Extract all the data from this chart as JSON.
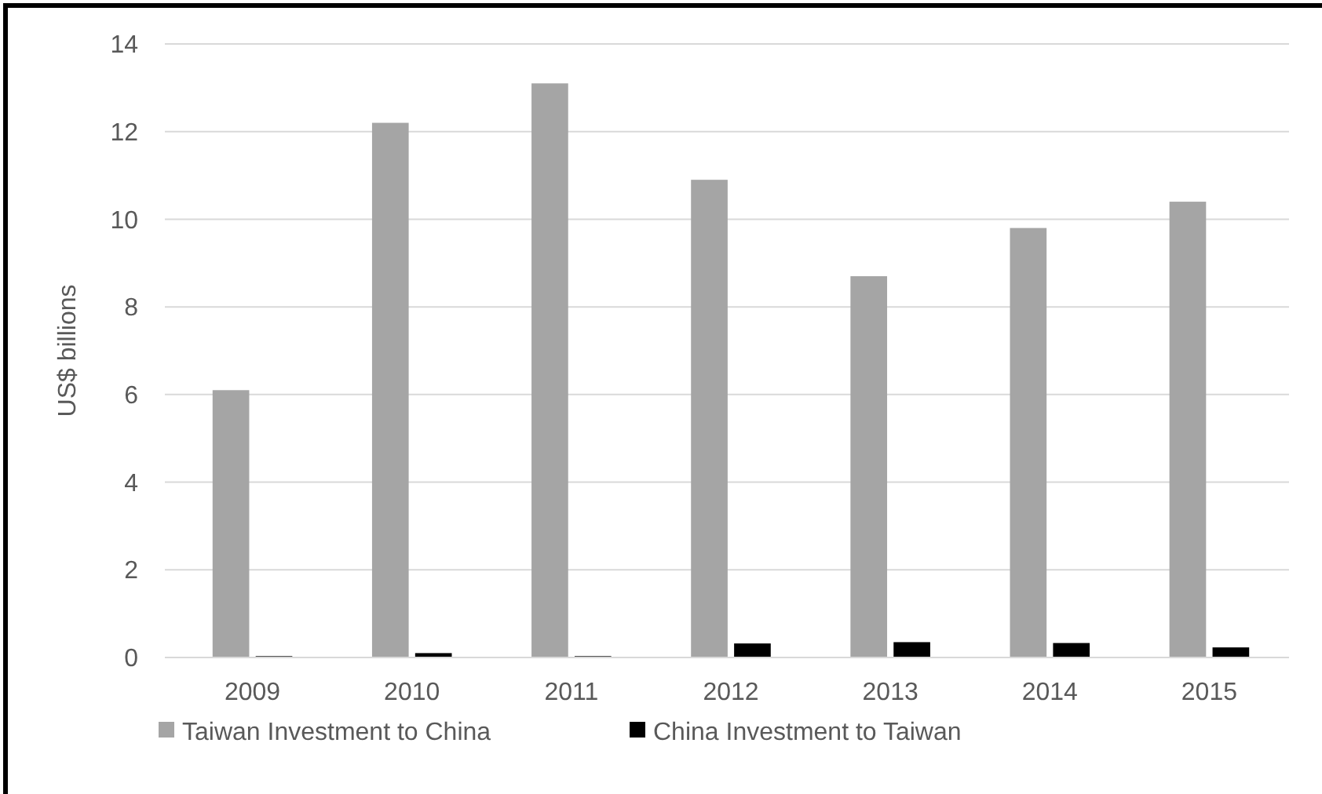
{
  "chart_data": {
    "type": "bar",
    "ylabel": "US$ billions",
    "categories": [
      "2009",
      "2010",
      "2011",
      "2012",
      "2013",
      "2014",
      "2015"
    ],
    "series": [
      {
        "name": "Taiwan Investment to China",
        "color": "#a5a5a5",
        "values": [
          6.1,
          12.2,
          13.1,
          10.9,
          8.7,
          9.8,
          10.4
        ]
      },
      {
        "name": "China Investment to Taiwan",
        "color": "#000000",
        "values": [
          0.03,
          0.1,
          0.03,
          0.32,
          0.35,
          0.33,
          0.23
        ]
      }
    ],
    "ylim": [
      0,
      14
    ],
    "yticks": [
      0,
      2,
      4,
      6,
      8,
      10,
      12,
      14
    ],
    "grid": "y",
    "legend": "bottom"
  }
}
